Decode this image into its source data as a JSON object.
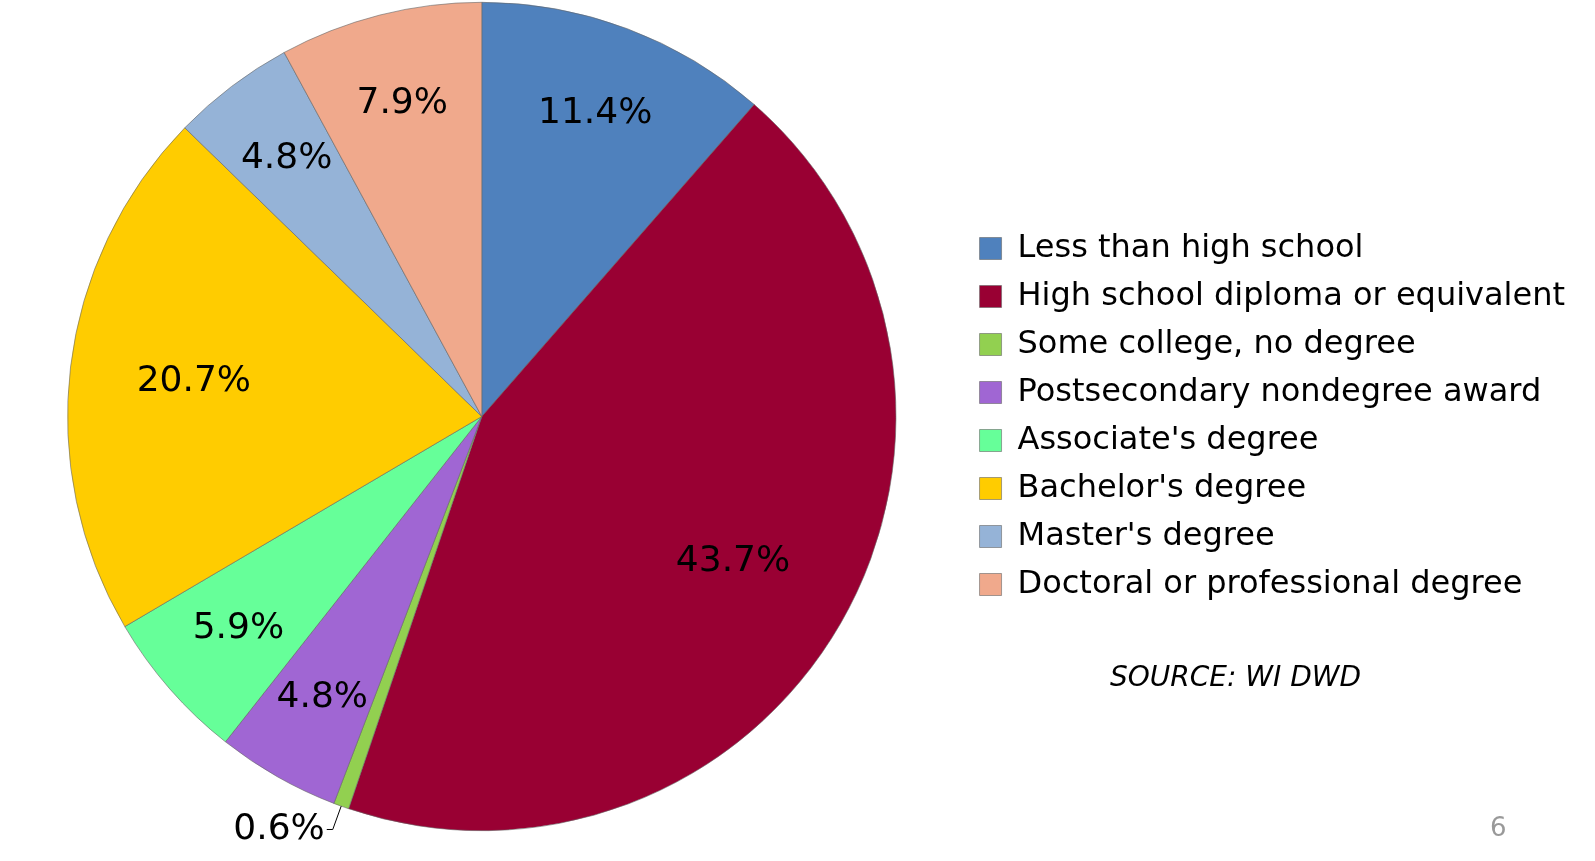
{
  "chart_data": {
    "type": "pie",
    "categories": [
      "Less than high school",
      "High school diploma or equivalent",
      "Some college, no degree",
      "Postsecondary nondegree award",
      "Associate's degree",
      "Bachelor's degree",
      "Master's degree",
      "Doctoral or professional degree"
    ],
    "values": [
      11.4,
      43.7,
      0.6,
      4.8,
      5.9,
      20.7,
      4.8,
      7.9
    ],
    "value_labels": [
      "11.4%",
      "43.7%",
      "0.6%",
      "4.8%",
      "5.9%",
      "20.7%",
      "4.8%",
      "7.9%"
    ],
    "colors": [
      "#4f81bd",
      "#990033",
      "#92d050",
      "#a066d3",
      "#66ff99",
      "#ffcc00",
      "#95b3d7",
      "#f0a98c"
    ],
    "legend": "right",
    "annotations": [
      "SOURCE:  WI DWD",
      "6"
    ]
  }
}
